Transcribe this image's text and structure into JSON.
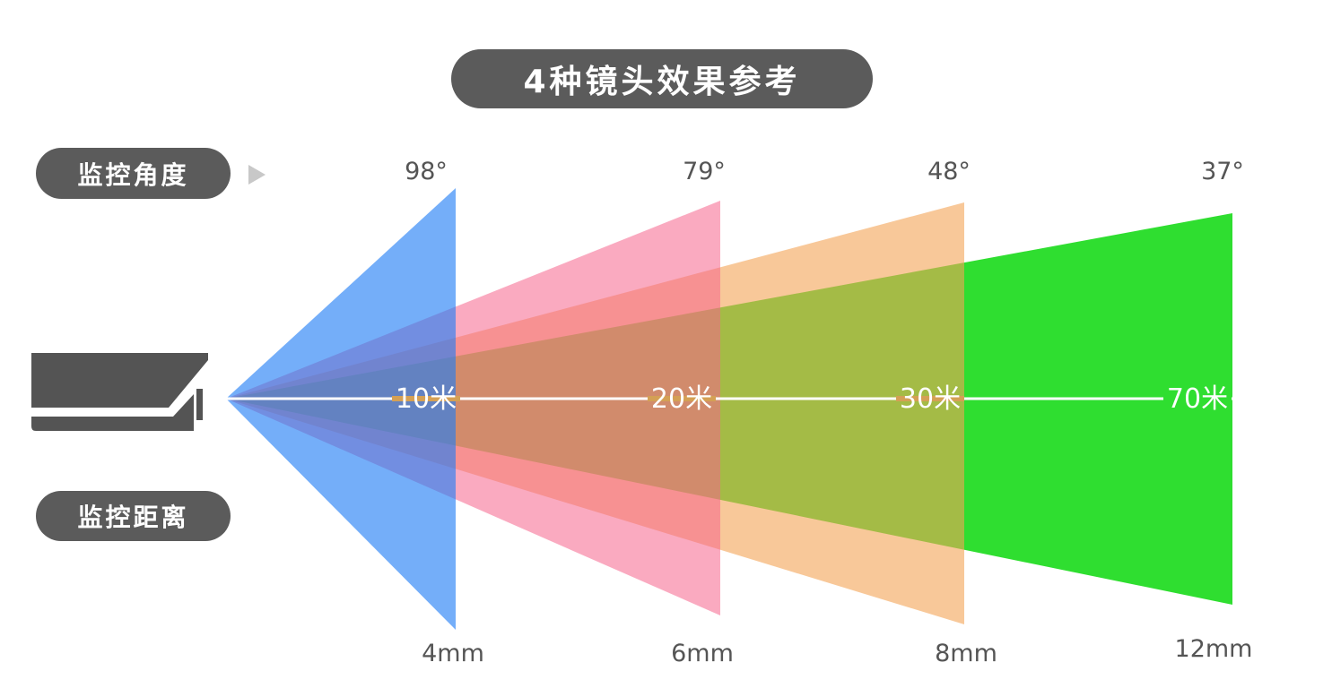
{
  "title": "4种镜头效果参考",
  "angle_label": "监控角度",
  "distance_label": "监控距离",
  "lenses": [
    {
      "angle": "98°",
      "focal": "4mm",
      "distance": "10米",
      "color": "#1f7df5"
    },
    {
      "angle": "79°",
      "focal": "6mm",
      "distance": "20米",
      "color": "#f6648c"
    },
    {
      "angle": "48°",
      "focal": "8mm",
      "distance": "30米",
      "color": "#f3a355"
    },
    {
      "angle": "37°",
      "focal": "12mm",
      "distance": "70米",
      "color": "#2fde30"
    }
  ],
  "camera_icon": "security-camera-icon",
  "arrow_icon": "triangle-right-icon"
}
